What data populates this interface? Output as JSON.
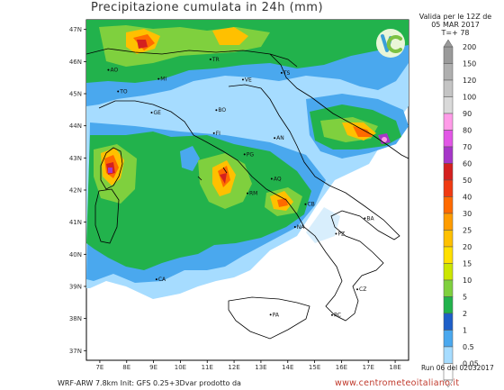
{
  "header": {
    "title": "Precipitazione cumulata in 24h (mm)",
    "valid_line1": "Valida per le 12Z de",
    "valid_line2": "05 MAR 2017",
    "valid_line3": "T=+ 78"
  },
  "map": {
    "lat_labels": [
      "47N",
      "46N",
      "45N",
      "44N",
      "43N",
      "42N",
      "41N",
      "40N",
      "39N",
      "38N",
      "37N"
    ],
    "lon_labels": [
      "7E",
      "8E",
      "9E",
      "10E",
      "11E",
      "12E",
      "13E",
      "14E",
      "15E",
      "16E",
      "17E",
      "18E"
    ],
    "cities": [
      {
        "name": "TO",
        "lon": 7.68,
        "lat": 45.07
      },
      {
        "name": "GE",
        "lon": 8.93,
        "lat": 44.41
      },
      {
        "name": "BO",
        "lon": 11.34,
        "lat": 44.49
      },
      {
        "name": "VE",
        "lon": 12.33,
        "lat": 45.44
      },
      {
        "name": "TS",
        "lon": 13.77,
        "lat": 45.65
      },
      {
        "name": "TR",
        "lon": 11.12,
        "lat": 46.07
      },
      {
        "name": "FI",
        "lon": 11.25,
        "lat": 43.77
      },
      {
        "name": "AN",
        "lon": 13.51,
        "lat": 43.62
      },
      {
        "name": "PG",
        "lon": 12.39,
        "lat": 43.11
      },
      {
        "name": "AQ",
        "lon": 13.4,
        "lat": 42.35
      },
      {
        "name": "RM",
        "lon": 12.5,
        "lat": 41.9
      },
      {
        "name": "CB",
        "lon": 14.66,
        "lat": 41.56
      },
      {
        "name": "NA",
        "lon": 14.27,
        "lat": 40.85
      },
      {
        "name": "BA",
        "lon": 16.87,
        "lat": 41.12
      },
      {
        "name": "PZ",
        "lon": 15.8,
        "lat": 40.64
      },
      {
        "name": "CZ",
        "lon": 16.59,
        "lat": 38.91
      },
      {
        "name": "RC",
        "lon": 15.65,
        "lat": 38.11
      },
      {
        "name": "PA",
        "lon": 13.36,
        "lat": 38.12
      },
      {
        "name": "CA",
        "lon": 9.11,
        "lat": 39.22
      },
      {
        "name": "AO",
        "lon": 7.32,
        "lat": 45.74
      },
      {
        "name": "MI",
        "lon": 9.19,
        "lat": 45.46
      }
    ]
  },
  "legend": {
    "levels": [
      {
        "label": "200",
        "color": "#9a9a9a"
      },
      {
        "label": "150",
        "color": "#afafaf"
      },
      {
        "label": "120",
        "color": "#c4c4c4"
      },
      {
        "label": "100",
        "color": "#d9d9d9"
      },
      {
        "label": "90",
        "color": "#ff9be8"
      },
      {
        "label": "80",
        "color": "#e256e6"
      },
      {
        "label": "70",
        "color": "#a636c8"
      },
      {
        "label": "60",
        "color": "#d4201f"
      },
      {
        "label": "50",
        "color": "#f03a12"
      },
      {
        "label": "40",
        "color": "#ff6a00"
      },
      {
        "label": "30",
        "color": "#ff9c00"
      },
      {
        "label": "25",
        "color": "#ffc000"
      },
      {
        "label": "20",
        "color": "#ffe000"
      },
      {
        "label": "15",
        "color": "#cce600"
      },
      {
        "label": "10",
        "color": "#7fd03e"
      },
      {
        "label": "5",
        "color": "#22b24c"
      },
      {
        "label": "2",
        "color": "#1e5fc8"
      },
      {
        "label": "1",
        "color": "#4aa8ee"
      },
      {
        "label": "0.5",
        "color": "#a6dcff"
      },
      {
        "label": "0.05",
        "color": "#ffffff"
      }
    ]
  },
  "footer": {
    "model_line": "WRF-ARW 7.8km Init: GFS 0.25+3Dvar prodotto da",
    "run_line": "Run 06 del 02032017",
    "site": "www.centrometeoitaliano.it"
  }
}
